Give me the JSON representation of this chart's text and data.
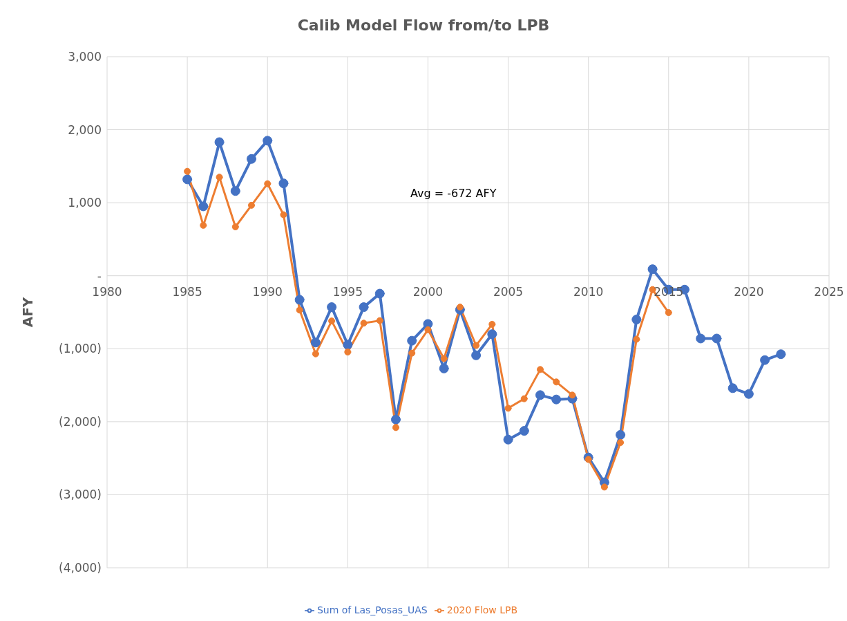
{
  "chart_data": {
    "type": "line",
    "title": "Calib Model Flow from/to LPB",
    "ylabel": "AFY",
    "annotations": [
      "Avg = -672 AFY"
    ],
    "x": [
      1985,
      1986,
      1987,
      1988,
      1989,
      1990,
      1991,
      1992,
      1993,
      1994,
      1995,
      1996,
      1997,
      1998,
      1999,
      2000,
      2001,
      2002,
      2003,
      2004,
      2005,
      2006,
      2007,
      2008,
      2009,
      2010,
      2011,
      2012,
      2013,
      2014,
      2015,
      2016,
      2017,
      2018,
      2019,
      2020,
      2021,
      2022
    ],
    "series": [
      {
        "name": "Sum of Las_Posas_UAS",
        "color": "#4472c4",
        "values": [
          1320,
          950,
          1830,
          1160,
          1600,
          1850,
          1265,
          -330,
          -915,
          -430,
          -945,
          -430,
          -245,
          -1970,
          -890,
          -660,
          -1270,
          -465,
          -1090,
          -800,
          -2245,
          -2125,
          -1635,
          -1695,
          -1685,
          -2490,
          -2830,
          -2180,
          -600,
          90,
          -190,
          -190,
          -860,
          -860,
          -1540,
          -1620,
          -1155,
          -1075
        ]
      },
      {
        "name": "2020 Flow LPB",
        "color": "#ed7d31",
        "values": [
          1430,
          690,
          1350,
          670,
          965,
          1260,
          835,
          -470,
          -1070,
          -620,
          -1045,
          -650,
          -615,
          -2080,
          -1060,
          -740,
          -1135,
          -430,
          -955,
          -665,
          -1815,
          -1685,
          -1285,
          -1455,
          -1635,
          -2515,
          -2895,
          -2285,
          -870,
          -190,
          -505,
          null,
          null,
          null,
          null,
          null,
          null,
          null
        ]
      }
    ],
    "xlim": [
      1980,
      2025
    ],
    "xticks": [
      1980,
      1985,
      1990,
      1995,
      2000,
      2005,
      2010,
      2015,
      2020,
      2025
    ],
    "ylim": [
      -4000,
      3000
    ],
    "yticks": [
      {
        "value": -4000,
        "label": "(4,000)"
      },
      {
        "value": -3000,
        "label": "(3,000)"
      },
      {
        "value": -2000,
        "label": "(2,000)"
      },
      {
        "value": -1000,
        "label": "(1,000)"
      },
      {
        "value": 0,
        "label": "-"
      },
      {
        "value": 1000,
        "label": "1,000"
      },
      {
        "value": 2000,
        "label": "2,000"
      },
      {
        "value": 3000,
        "label": "3,000"
      }
    ],
    "grid": true,
    "legend": "bottom",
    "marker": "circle",
    "line_style": "solid"
  }
}
